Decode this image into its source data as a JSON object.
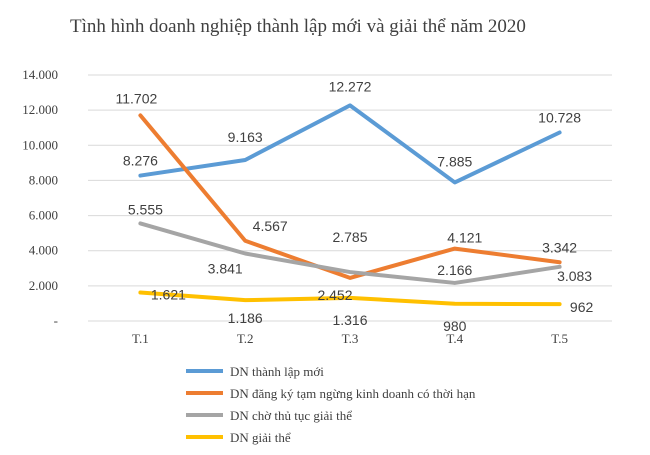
{
  "chart_data": {
    "type": "line",
    "title": "Tình hình doanh nghiệp thành lập mới và giải thể năm 2020",
    "categories": [
      "T.1",
      "T.2",
      "T.3",
      "T.4",
      "T.5"
    ],
    "y_ticks": [
      "-",
      "2.000",
      "4.000",
      "6.000",
      "8.000",
      "10.000",
      "12.000",
      "14.000"
    ],
    "ylim": [
      0,
      14000
    ],
    "grid": true,
    "legend_position": "bottom",
    "series": [
      {
        "name": "DN thành lập mới",
        "color": "#5B9BD5",
        "values": [
          8276,
          9163,
          12272,
          7885,
          10728
        ],
        "labels": [
          "8.276",
          "9.163",
          "12.272",
          "7.885",
          "10.728"
        ]
      },
      {
        "name": "DN đăng ký tạm ngừng kinh doanh có thời hạn",
        "color": "#ED7D31",
        "values": [
          11702,
          4567,
          2452,
          4121,
          3342
        ],
        "labels": [
          "11.702",
          "4.567",
          "2.452",
          "4.121",
          "3.342"
        ]
      },
      {
        "name": "DN chờ thủ tục giải thể",
        "color": "#A5A5A5",
        "values": [
          5555,
          3841,
          2785,
          2166,
          3083
        ],
        "labels": [
          "5.555",
          "3.841",
          "2.785",
          "2.166",
          "3.083"
        ]
      },
      {
        "name": "DN giải thể",
        "color": "#FFC000",
        "values": [
          1621,
          1186,
          1316,
          980,
          962
        ],
        "labels": [
          "1.621",
          "1.186",
          "1.316",
          "980",
          "962"
        ]
      }
    ]
  }
}
